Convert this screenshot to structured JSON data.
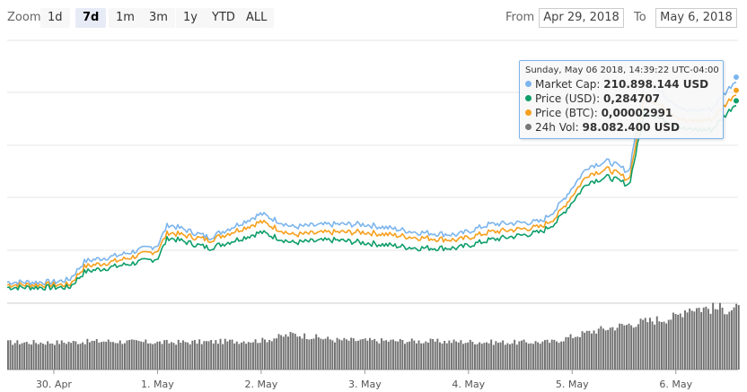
{
  "toolbar": {
    "zoom_label": "Zoom",
    "zoom_buttons": [
      "1d",
      "7d",
      "1m",
      "3m",
      "1y",
      "YTD",
      "ALL"
    ],
    "active_zoom": "7d",
    "from_label": "From",
    "from_value": "Apr 29, 2018",
    "to_label": "To",
    "to_value": "May 6, 2018"
  },
  "tooltip": {
    "date": "Sunday, May 06 2018, 14:39:22 UTC-04:00",
    "rows": [
      {
        "label": "Market Cap:",
        "value": "210.898.144 USD",
        "color": "#7cb5ec"
      },
      {
        "label": "Price (USD):",
        "value": "0,284707",
        "color": "#0e9e6a"
      },
      {
        "label": "Price (BTC):",
        "value": "0,00002991",
        "color": "#f7a01e"
      },
      {
        "label": "24h Vol:",
        "value": "98.082.400 USD",
        "color": "#777777"
      }
    ]
  },
  "chart_data": {
    "type": "line",
    "x_tick_labels": [
      "30. Apr",
      "1. May",
      "2. May",
      "3. May",
      "4. May",
      "5. May",
      "6. May"
    ],
    "x_range_days": [
      0,
      7
    ],
    "grid": true,
    "legend": "none",
    "series": [
      {
        "name": "Market Cap",
        "color": "#7cb5ec",
        "axis": "price",
        "y_range": [
          0,
          100
        ],
        "x": [
          0,
          0.15,
          0.3,
          0.6,
          1.0,
          1.1,
          1.5,
          2.0,
          2.3,
          2.7,
          3.0,
          3.5,
          3.9,
          4.2,
          4.7,
          4.85,
          5.15,
          5.35,
          5.55,
          5.7,
          6.1,
          6.35,
          6.6,
          6.8,
          7.0
        ],
        "y": [
          8,
          9,
          16,
          18,
          22,
          30,
          25,
          34,
          29,
          30,
          30,
          27,
          26,
          30,
          31,
          36,
          52,
          54,
          50,
          85,
          73,
          74,
          86,
          78,
          86
        ]
      },
      {
        "name": "Price (USD)",
        "color": "#0e9e6a",
        "axis": "price",
        "y_range": [
          0,
          100
        ],
        "x": [
          0,
          0.15,
          0.3,
          0.6,
          1.0,
          1.1,
          1.5,
          2.0,
          2.3,
          2.7,
          3.0,
          3.5,
          3.9,
          4.2,
          4.7,
          4.85,
          5.15,
          5.35,
          5.55,
          5.7,
          6.1,
          6.35,
          6.6,
          6.8,
          7.0
        ],
        "y": [
          6,
          6,
          12,
          14,
          17,
          25,
          21,
          27,
          23,
          24,
          23,
          21,
          21,
          24,
          27,
          31,
          46,
          48,
          45,
          73,
          66,
          66,
          77,
          70,
          77
        ]
      },
      {
        "name": "Price (BTC)",
        "color": "#f7a01e",
        "axis": "price",
        "y_range": [
          0,
          100
        ],
        "x": [
          0,
          0.15,
          0.3,
          0.6,
          1.0,
          1.1,
          1.5,
          2.0,
          2.3,
          2.7,
          3.0,
          3.5,
          3.9,
          4.2,
          4.7,
          4.85,
          5.15,
          5.35,
          5.55,
          5.7,
          6.1,
          6.35,
          6.6,
          6.8,
          7.0
        ],
        "y": [
          7,
          7,
          14,
          16,
          20,
          27,
          24,
          31,
          26,
          27,
          27,
          25,
          24,
          27,
          29,
          33,
          49,
          51,
          47,
          79,
          69,
          70,
          81,
          74,
          81
        ]
      },
      {
        "name": "24h Vol",
        "color": "#777777",
        "axis": "volume",
        "y_range": [
          0,
          100
        ],
        "x": [
          0,
          0.5,
          1.0,
          1.5,
          2.0,
          2.3,
          2.7,
          3.0,
          3.5,
          4.0,
          4.4,
          4.8,
          5.2,
          5.6,
          6.0,
          6.1,
          7.0
        ],
        "y": [
          42,
          44,
          42,
          43,
          45,
          55,
          46,
          45,
          44,
          43,
          42,
          43,
          60,
          72,
          82,
          96,
          92
        ]
      }
    ]
  }
}
